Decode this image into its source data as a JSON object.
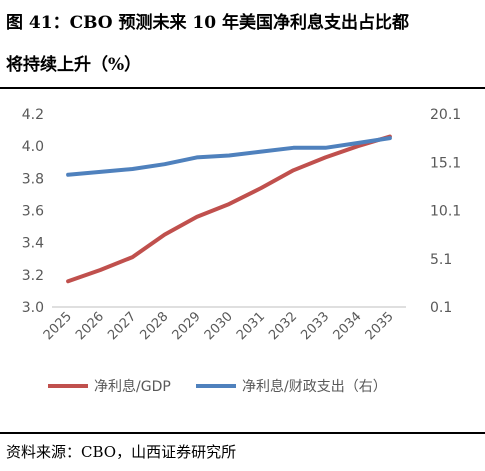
{
  "header": {
    "title_line1": "图 41：CBO 预测未来 10 年美国净利息支出占比都",
    "title_line2": "将持续上升（%）"
  },
  "footer": {
    "source": "资料来源：CBO，山西证券研究所"
  },
  "chart_data": {
    "type": "line",
    "x": [
      "2025",
      "2026",
      "2027",
      "2028",
      "2029",
      "2030",
      "2031",
      "2032",
      "2033",
      "2034",
      "2035"
    ],
    "series": [
      {
        "name": "净利息/GDP",
        "axis": "left",
        "color": "#c0504d",
        "values": [
          3.16,
          3.23,
          3.31,
          3.45,
          3.56,
          3.64,
          3.74,
          3.85,
          3.93,
          4.0,
          4.06
        ]
      },
      {
        "name": "净利息/财政支出（右）",
        "axis": "right",
        "color": "#4f81bd",
        "values": [
          13.8,
          14.1,
          14.4,
          14.9,
          15.6,
          15.8,
          16.2,
          16.6,
          16.6,
          17.1,
          17.6
        ]
      }
    ],
    "left_axis": {
      "min": 3.0,
      "max": 4.2,
      "ticks": [
        "3.0",
        "3.2",
        "3.4",
        "3.6",
        "3.8",
        "4.0",
        "4.2"
      ]
    },
    "right_axis": {
      "min": 0.1,
      "max": 20.1,
      "ticks": [
        "0.1",
        "5.1",
        "10.1",
        "15.1",
        "20.1"
      ]
    },
    "grid": false,
    "legend_position": "bottom"
  }
}
